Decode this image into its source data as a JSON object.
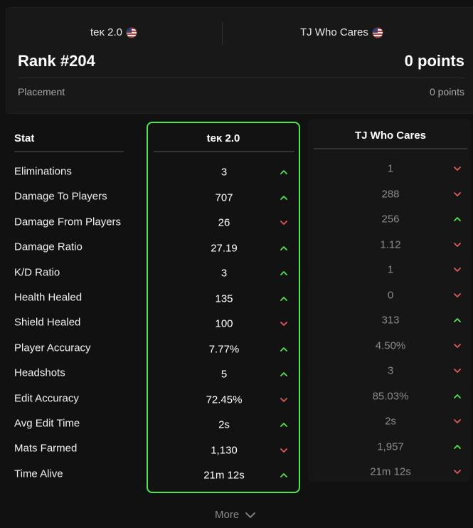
{
  "header": {
    "player1": {
      "name": "teĸ 2.0",
      "flag_icon": "us-flag-icon"
    },
    "player2": {
      "name": "TJ Who Cares",
      "flag_icon": "us-flag-icon"
    },
    "rank": "Rank #204",
    "points": "0 points",
    "placement_label": "Placement",
    "placement_value": "0 points"
  },
  "table": {
    "stat_header": "Stat",
    "player1_header": "teĸ 2.0",
    "player2_header": "TJ Who Cares",
    "rows": [
      {
        "label": "Eliminations",
        "p1": "3",
        "p1_trend": "up",
        "p2": "1",
        "p2_trend": "down"
      },
      {
        "label": "Damage To Players",
        "p1": "707",
        "p1_trend": "up",
        "p2": "288",
        "p2_trend": "down"
      },
      {
        "label": "Damage From Players",
        "p1": "26",
        "p1_trend": "down",
        "p2": "256",
        "p2_trend": "up"
      },
      {
        "label": "Damage Ratio",
        "p1": "27.19",
        "p1_trend": "up",
        "p2": "1.12",
        "p2_trend": "down"
      },
      {
        "label": "K/D Ratio",
        "p1": "3",
        "p1_trend": "up",
        "p2": "1",
        "p2_trend": "down"
      },
      {
        "label": "Health Healed",
        "p1": "135",
        "p1_trend": "up",
        "p2": "0",
        "p2_trend": "down"
      },
      {
        "label": "Shield Healed",
        "p1": "100",
        "p1_trend": "down",
        "p2": "313",
        "p2_trend": "up"
      },
      {
        "label": "Player Accuracy",
        "p1": "7.77%",
        "p1_trend": "up",
        "p2": "4.50%",
        "p2_trend": "down"
      },
      {
        "label": "Headshots",
        "p1": "5",
        "p1_trend": "up",
        "p2": "3",
        "p2_trend": "down"
      },
      {
        "label": "Edit Accuracy",
        "p1": "72.45%",
        "p1_trend": "down",
        "p2": "85.03%",
        "p2_trend": "up"
      },
      {
        "label": "Avg Edit Time",
        "p1": "2s",
        "p1_trend": "up",
        "p2": "2s",
        "p2_trend": "down"
      },
      {
        "label": "Mats Farmed",
        "p1": "1,130",
        "p1_trend": "down",
        "p2": "1,957",
        "p2_trend": "up"
      },
      {
        "label": "Time Alive",
        "p1": "21m 12s",
        "p1_trend": "up",
        "p2": "21m 12s",
        "p2_trend": "down"
      }
    ]
  },
  "more_label": "More",
  "colors": {
    "better": "#4ee54e",
    "worse": "#e05a5a"
  }
}
